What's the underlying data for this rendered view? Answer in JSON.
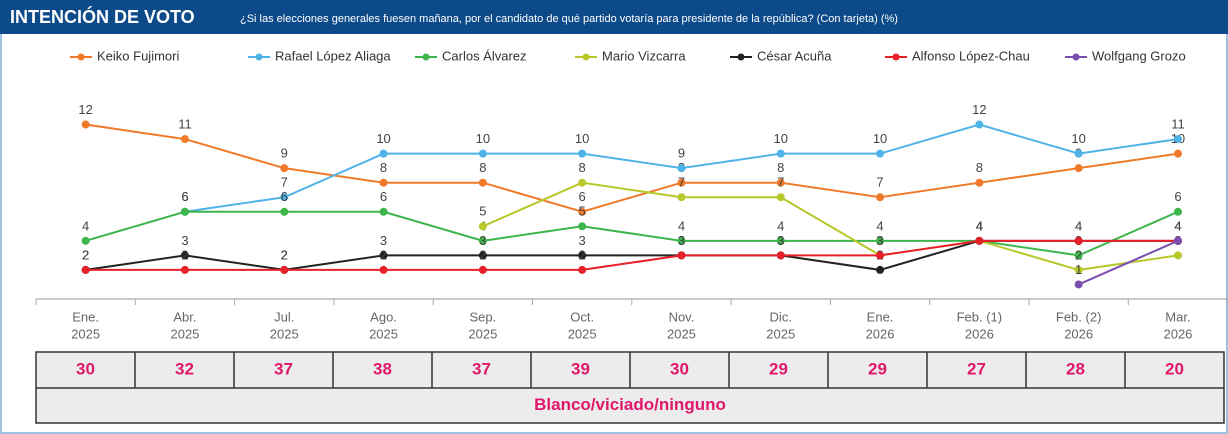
{
  "chart_data": {
    "type": "line",
    "title": "INTENCIÓN DE VOTO",
    "subtitle": "¿Si las elecciones generales fuesen mañana, por el candidato de qué partido votaría para presidente de la república? (Con tarjeta) (%)",
    "categories": [
      [
        "Ene.",
        "2025"
      ],
      [
        "Abr.",
        "2025"
      ],
      [
        "Jul.",
        "2025"
      ],
      [
        "Ago.",
        "2025"
      ],
      [
        "Sep.",
        "2025"
      ],
      [
        "Oct.",
        "2025"
      ],
      [
        "Nov.",
        "2025"
      ],
      [
        "Dic.",
        "2025"
      ],
      [
        "Ene.",
        "2026"
      ],
      [
        "Feb. (1)",
        "2026"
      ],
      [
        "Feb. (2)",
        "2026"
      ],
      [
        "Mar.",
        "2026"
      ]
    ],
    "ylim": [
      0,
      13
    ],
    "series": [
      {
        "name": "Keiko Fujimori",
        "color": "#f07a2a",
        "values": [
          12,
          11,
          9,
          8,
          8,
          6,
          8,
          8,
          7,
          8,
          9,
          10
        ]
      },
      {
        "name": "Rafael López Aliaga",
        "color": "#4fb3e8",
        "values": [
          null,
          6,
          7,
          10,
          10,
          10,
          9,
          10,
          10,
          12,
          10,
          11
        ]
      },
      {
        "name": "Carlos Álvarez",
        "color": "#3cb54a",
        "values": [
          4,
          6,
          6,
          6,
          4,
          5,
          4,
          4,
          4,
          4,
          3,
          6
        ]
      },
      {
        "name": "Mario Vizcarra",
        "color": "#b8c72a",
        "values": [
          null,
          null,
          null,
          null,
          5,
          8,
          7,
          7,
          3,
          4,
          2,
          3
        ]
      },
      {
        "name": "César Acuña",
        "color": "#222222",
        "values": [
          2,
          3,
          2,
          3,
          3,
          3,
          3,
          3,
          2,
          4,
          4,
          4
        ]
      },
      {
        "name": "Alfonso López-Chau",
        "color": "#e8202a",
        "values": [
          2,
          2,
          2,
          2,
          2,
          2,
          3,
          3,
          3,
          4,
          4,
          4
        ]
      },
      {
        "name": "Wolfgang Grozo",
        "color": "#7b4fb0",
        "values": [
          null,
          null,
          null,
          null,
          null,
          null,
          null,
          null,
          null,
          null,
          1,
          4
        ]
      }
    ],
    "table": {
      "label": "Blanco/viciado/ninguno",
      "color": "#e0186c",
      "values": [
        30,
        32,
        37,
        38,
        37,
        39,
        30,
        29,
        29,
        27,
        28,
        20
      ]
    }
  }
}
